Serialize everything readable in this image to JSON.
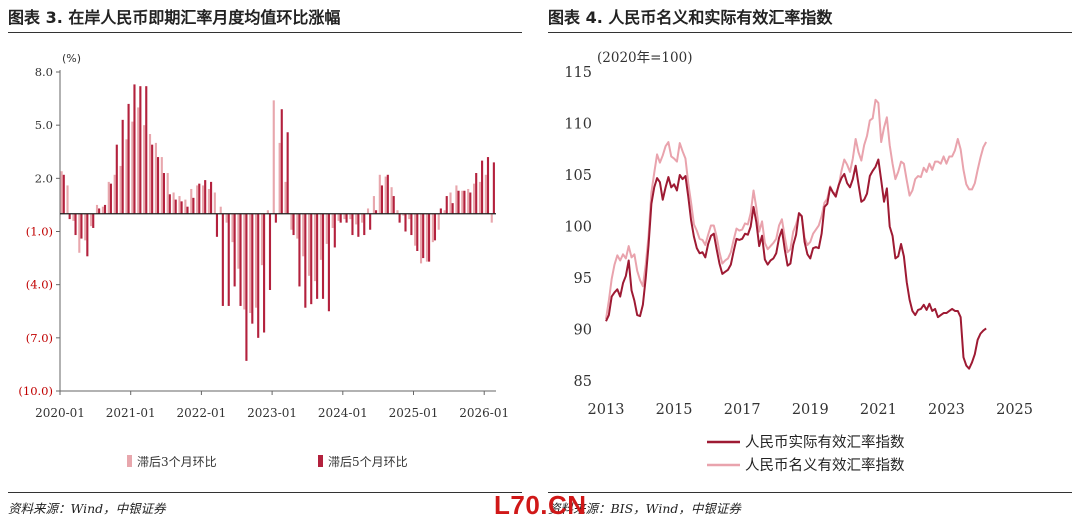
{
  "colors": {
    "bar_a": "#e8a7ad",
    "bar_b": "#b3213d",
    "real": "#9e1a33",
    "nominal": "#e9a3ad"
  },
  "left_panel": {
    "title": "图表 3. 在岸人民币即期汇率月度均值环比涨幅",
    "source": "资料来源：Wind，中银证券"
  },
  "right_panel": {
    "title": "图表 4. 人民币名义和实际有效汇率指数",
    "source": "资料来源：BIS，Wind，中银证券"
  },
  "watermark": "L70.CN",
  "chart_data": [
    {
      "type": "bar",
      "ylabel": "(%)",
      "ylim": [
        -10,
        8
      ],
      "yticks": [
        {
          "v": 8,
          "label": "8.0",
          "neg": false
        },
        {
          "v": 5,
          "label": "5.0",
          "neg": false
        },
        {
          "v": 2,
          "label": "2.0",
          "neg": false
        },
        {
          "v": -1,
          "label": "(1.0)",
          "neg": true
        },
        {
          "v": -4,
          "label": "(4.0)",
          "neg": true
        },
        {
          "v": -7,
          "label": "(7.0)",
          "neg": true
        },
        {
          "v": -10,
          "label": "(10.0)",
          "neg": true
        }
      ],
      "xticks": [
        {
          "i": 0,
          "label": "2020-01"
        },
        {
          "i": 12,
          "label": "2021-01"
        },
        {
          "i": 24,
          "label": "2022-01"
        },
        {
          "i": 36,
          "label": "2023-01"
        },
        {
          "i": 48,
          "label": "2024-01"
        },
        {
          "i": 60,
          "label": "2025-01"
        },
        {
          "i": 72,
          "label": "2026-01"
        }
      ],
      "categories_start": "2020-01",
      "series": [
        {
          "name": "滞后3个月环比",
          "values": [
            2.4,
            1.6,
            -0.4,
            -2.2,
            -1.5,
            -0.7,
            0.5,
            0.4,
            1.8,
            2.2,
            2.7,
            4.2,
            5.2,
            6.0,
            5.0,
            4.5,
            4.0,
            3.2,
            2.3,
            1.2,
            1.0,
            0.8,
            1.4,
            1.6,
            1.6,
            1.4,
            1.2,
            0.4,
            -0.5,
            -1.6,
            -3.1,
            -5.4,
            -5.6,
            -5.3,
            -2.9,
            0.2,
            6.4,
            4.0,
            1.8,
            -0.9,
            -1.4,
            -2.4,
            -3.5,
            -3.8,
            -2.6,
            -1.7,
            -0.8,
            -0.4,
            -0.3,
            -0.3,
            -0.6,
            -0.5,
            0.3,
            1.0,
            2.2,
            2.1,
            1.5,
            0.2,
            -0.1,
            -0.3,
            -1.8,
            -2.8,
            -2.7,
            -1.6,
            -0.9,
            0.2,
            1.2,
            1.6,
            1.3,
            1.4,
            1.7,
            1.8,
            2.2,
            -0.5
          ]
        },
        {
          "name": "滞后5个月环比",
          "values": [
            2.2,
            -0.3,
            -1.2,
            -1.4,
            -2.4,
            -0.8,
            0.3,
            0.5,
            1.7,
            3.9,
            5.3,
            6.2,
            7.3,
            7.2,
            7.2,
            3.9,
            3.2,
            2.3,
            1.1,
            0.8,
            0.7,
            0.4,
            0.9,
            1.7,
            1.9,
            1.8,
            -1.3,
            -5.2,
            -5.2,
            -4.1,
            -5.2,
            -8.3,
            -6.2,
            -7.0,
            -6.7,
            -4.3,
            -0.5,
            5.9,
            4.6,
            -1.2,
            -4.1,
            -5.3,
            -5.1,
            -4.8,
            -4.8,
            -5.5,
            -1.9,
            -0.5,
            -0.5,
            -1.2,
            -1.3,
            -1.2,
            -0.9,
            0.2,
            1.6,
            2.2,
            1.0,
            -0.5,
            -1.0,
            -1.2,
            -2.1,
            -2.5,
            -2.7,
            -1.5,
            0.3,
            1.0,
            0.6,
            1.3,
            1.3,
            1.2,
            2.3,
            3.0,
            3.2,
            2.9
          ]
        }
      ]
    },
    {
      "type": "line",
      "ylabel": "(2020年=100)",
      "ylim": [
        85,
        115
      ],
      "yticks": [
        115,
        110,
        105,
        100,
        95,
        90,
        85
      ],
      "xlim": [
        2013.0,
        2026.1
      ],
      "xticks": [
        2013,
        2015,
        2017,
        2019,
        2021,
        2023,
        2025
      ],
      "series": [
        {
          "name": "人民币实际有效汇率指数",
          "x_start": 2013.0,
          "step": 0.08333,
          "values": [
            90.8,
            91.4,
            93.2,
            93.6,
            93.9,
            93.2,
            94.5,
            95.2,
            96.7,
            93.8,
            92.8,
            91.4,
            91.3,
            92.4,
            95.0,
            98.2,
            102.2,
            103.8,
            104.7,
            104.3,
            102.6,
            103.8,
            104.8,
            103.8,
            104.1,
            103.5,
            105.0,
            104.6,
            104.9,
            102.9,
            100.6,
            99.0,
            97.9,
            97.4,
            97.5,
            97.0,
            98.3,
            99.1,
            99.3,
            97.8,
            96.4,
            95.4,
            95.6,
            95.8,
            96.3,
            97.6,
            98.8,
            98.7,
            98.8,
            99.3,
            99.2,
            100.0,
            101.9,
            100.4,
            98.1,
            99.1,
            96.8,
            96.3,
            96.7,
            96.9,
            97.4,
            98.9,
            99.7,
            97.8,
            96.2,
            96.4,
            98.2,
            99.2,
            101.3,
            101.0,
            98.5,
            97.3,
            96.9,
            97.9,
            98.0,
            97.9,
            99.3,
            101.9,
            102.2,
            103.8,
            103.3,
            102.9,
            104.0,
            104.7,
            105.1,
            104.2,
            103.8,
            104.6,
            105.9,
            104.1,
            102.4,
            102.6,
            103.2,
            104.9,
            105.4,
            105.8,
            106.5,
            104.5,
            102.4,
            103.7,
            100.0,
            99.1,
            96.9,
            97.1,
            98.3,
            97.1,
            94.6,
            92.9,
            91.8,
            91.4,
            91.9,
            92.0,
            92.4,
            91.9,
            92.5,
            91.8,
            92.0,
            91.2,
            91.4,
            91.6,
            91.6,
            91.8,
            92.0,
            91.8,
            91.8,
            91.2,
            87.3,
            86.5,
            86.2,
            86.8,
            87.6,
            89.0,
            89.6,
            89.9,
            90.1
          ]
        },
        {
          "name": "人民币名义有效汇率指数",
          "x_start": 2013.0,
          "step": 0.08333,
          "values": [
            91.0,
            92.8,
            94.9,
            96.3,
            97.2,
            96.7,
            97.3,
            96.9,
            98.1,
            97.0,
            97.3,
            95.7,
            94.8,
            94.2,
            96.3,
            99.1,
            103.3,
            105.2,
            107.0,
            106.2,
            106.9,
            107.8,
            108.2,
            106.8,
            106.6,
            106.3,
            108.1,
            107.3,
            106.6,
            104.2,
            102.3,
            100.2,
            99.6,
            98.8,
            98.7,
            98.2,
            99.2,
            100.1,
            100.1,
            99.0,
            97.5,
            96.4,
            96.7,
            96.9,
            97.5,
            98.7,
            99.8,
            99.6,
            99.7,
            100.3,
            100.2,
            101.3,
            103.5,
            101.8,
            99.5,
            100.5,
            98.4,
            97.8,
            98.1,
            98.4,
            98.8,
            100.1,
            100.7,
            99.0,
            97.5,
            97.8,
            99.5,
            100.2,
            101.2,
            101.0,
            98.9,
            98.2,
            98.5,
            99.3,
            99.7,
            100.1,
            101.0,
            102.3,
            102.7,
            103.9,
            103.3,
            103.2,
            103.9,
            105.4,
            106.5,
            106.0,
            105.3,
            106.6,
            108.5,
            107.2,
            106.4,
            107.9,
            108.8,
            110.3,
            110.5,
            112.3,
            112.0,
            108.2,
            109.6,
            110.6,
            107.9,
            106.1,
            104.6,
            105.3,
            106.3,
            106.1,
            104.5,
            103.0,
            103.5,
            104.6,
            104.9,
            104.8,
            105.7,
            105.3,
            106.1,
            105.5,
            106.3,
            106.3,
            106.1,
            106.8,
            106.1,
            106.8,
            106.8,
            107.4,
            108.5,
            107.5,
            105.5,
            104.1,
            103.6,
            103.6,
            104.2,
            105.5,
            106.7,
            107.7,
            108.2
          ]
        }
      ]
    }
  ]
}
